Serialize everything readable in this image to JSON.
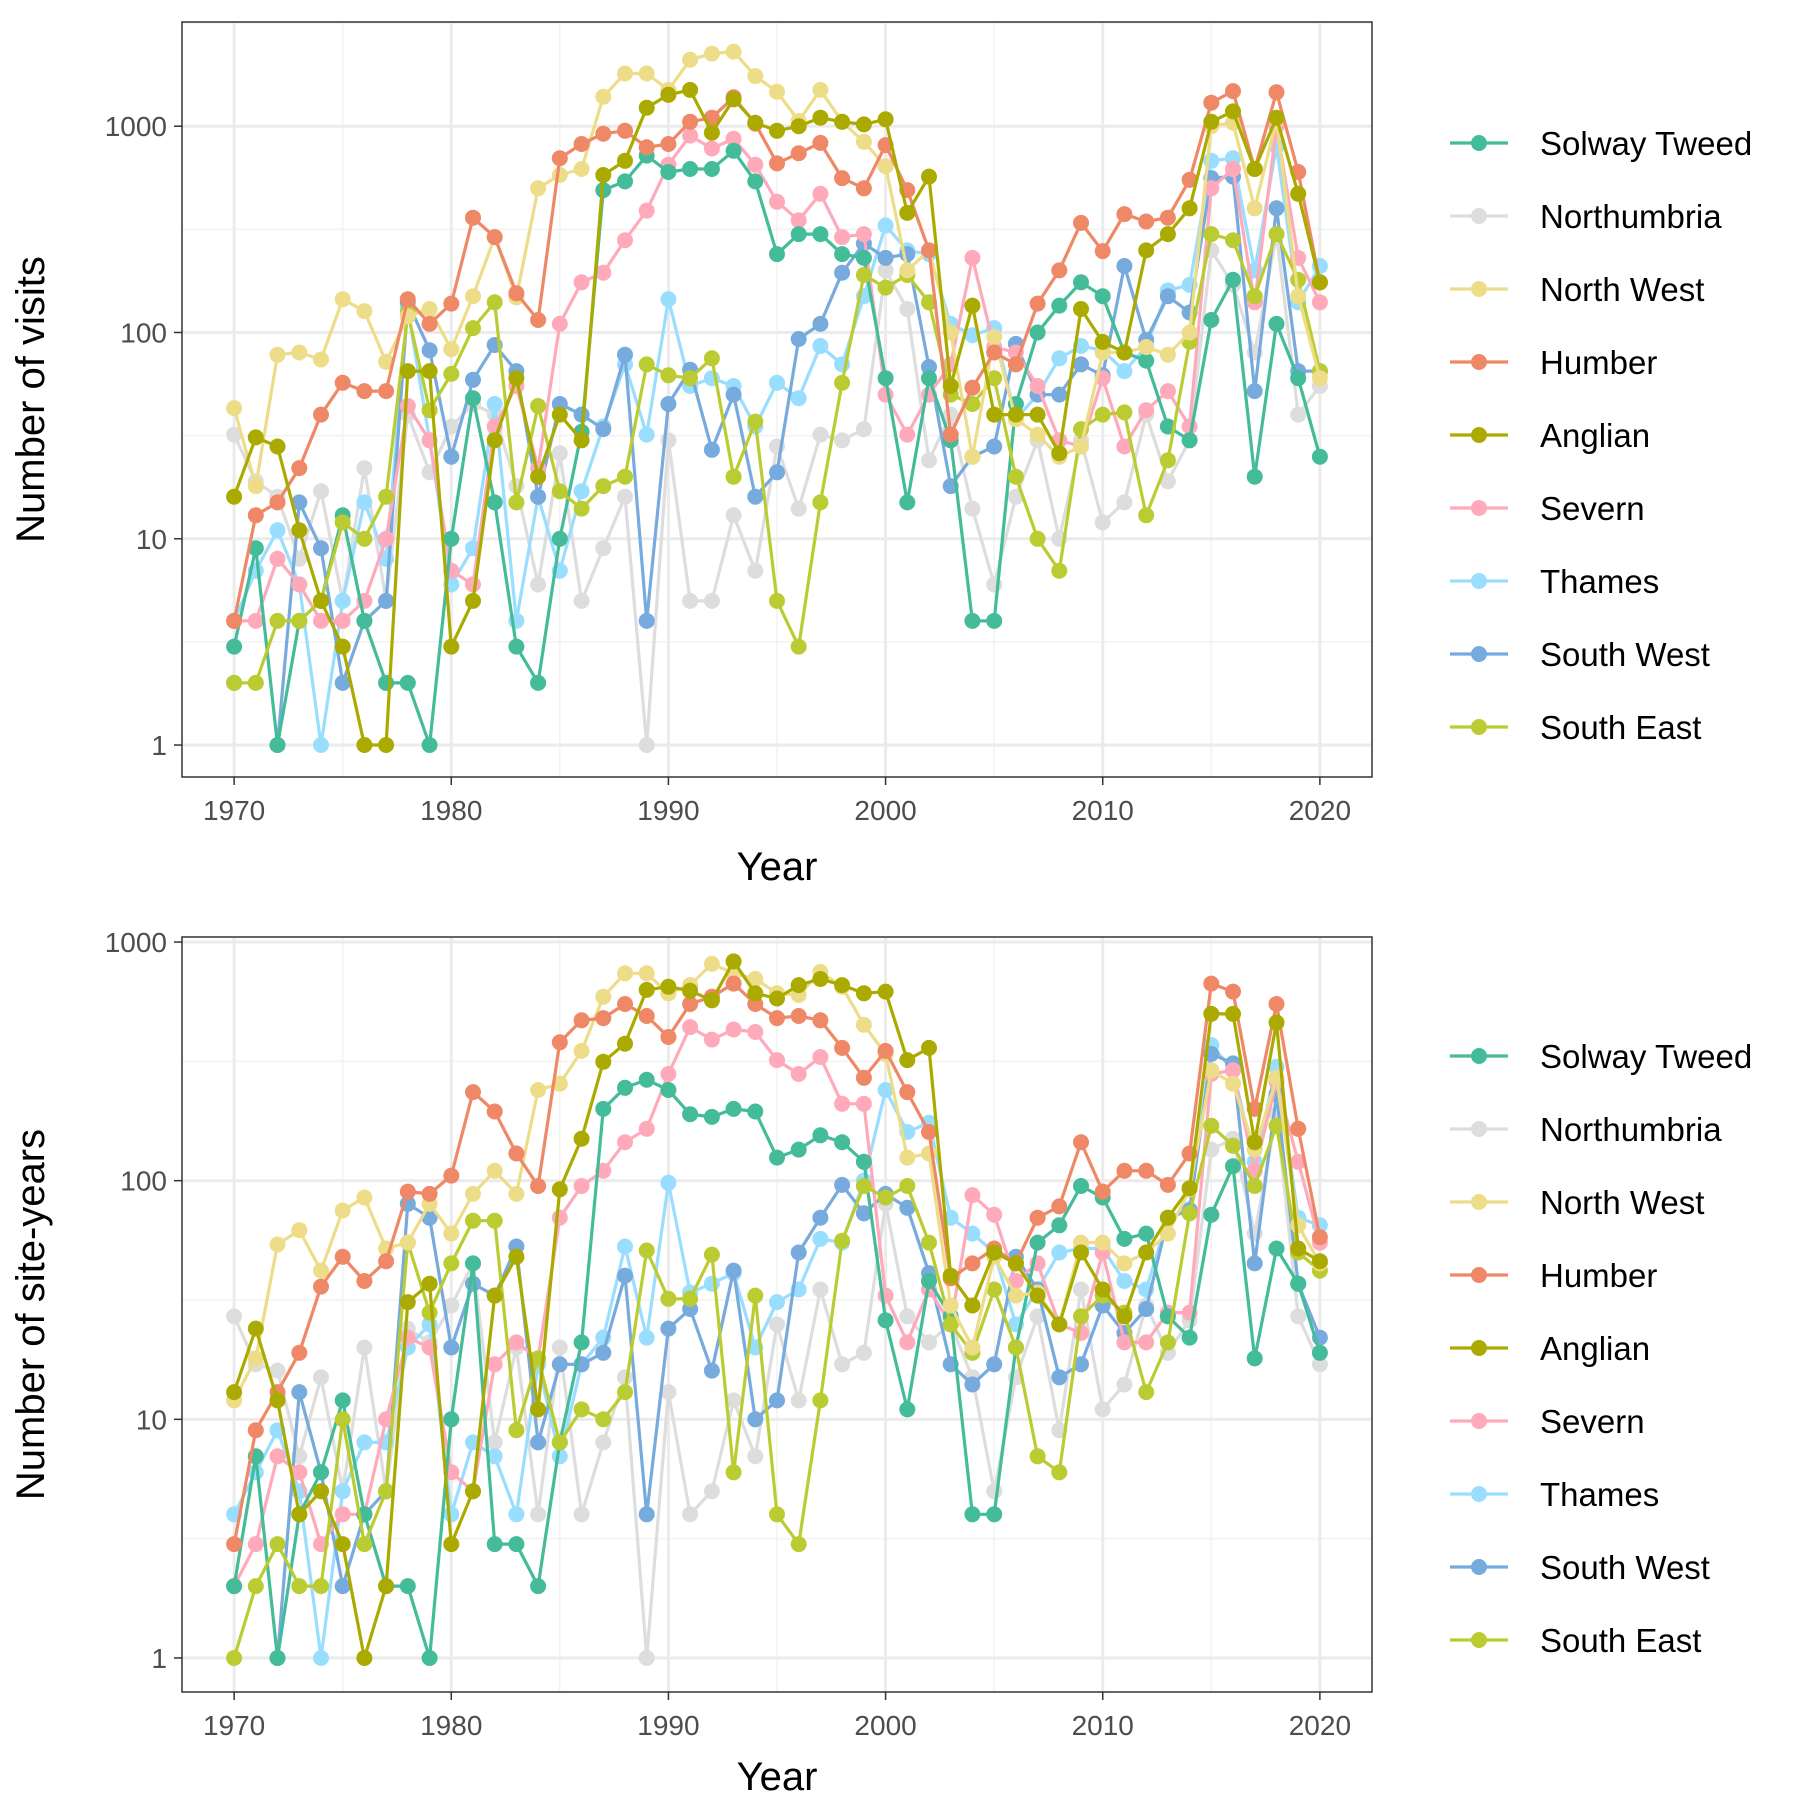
{
  "chart_data": [
    {
      "type": "line",
      "xlabel": "Year",
      "ylabel": "Number of visits",
      "y_scale": "log10",
      "xlim": [
        1967.6,
        2022.4
      ],
      "ylim": [
        0.7,
        3200
      ],
      "x_ticks": [
        1970,
        1980,
        1990,
        2000,
        2010,
        2020
      ],
      "y_ticks": [
        1,
        10,
        100,
        1000
      ],
      "y_tick_labels": [
        "1",
        "10",
        "100",
        "1000"
      ],
      "grid": true,
      "legend_position": "right",
      "x": [
        1970,
        1971,
        1972,
        1973,
        1974,
        1975,
        1976,
        1977,
        1978,
        1979,
        1980,
        1981,
        1982,
        1983,
        1984,
        1985,
        1986,
        1987,
        1988,
        1989,
        1990,
        1991,
        1992,
        1993,
        1994,
        1995,
        1996,
        1997,
        1998,
        1999,
        2000,
        2001,
        2002,
        2003,
        2004,
        2005,
        2006,
        2007,
        2008,
        2009,
        2010,
        2011,
        2012,
        2013,
        2014,
        2015,
        2016,
        2017,
        2018,
        2019,
        2020
      ],
      "series": [
        {
          "name": "Northumbria",
          "color": "#dddddd",
          "values": [
            32,
            19,
            16,
            8,
            17,
            5,
            22,
            5,
            40,
            21,
            35,
            45,
            40,
            18,
            6,
            26,
            5,
            9,
            16,
            1,
            30,
            5,
            5,
            13,
            7,
            28,
            14,
            32,
            30,
            34,
            200,
            130,
            24,
            40,
            14,
            6,
            16,
            30,
            10,
            30,
            12,
            15,
            40,
            19,
            30,
            250,
            170,
            80,
            300,
            40,
            55
          ]
        },
        {
          "name": "Thames",
          "color": "#99ddff",
          "values": [
            4,
            7,
            11,
            6,
            1,
            5,
            15,
            8,
            130,
            30,
            6,
            9,
            45,
            4,
            16,
            7,
            17,
            35,
            70,
            32,
            145,
            55,
            60,
            55,
            35,
            57,
            48,
            86,
            70,
            150,
            330,
            250,
            240,
            110,
            97,
            105,
            38,
            50,
            75,
            86,
            82,
            65,
            85,
            160,
            170,
            680,
            700,
            200,
            800,
            140,
            210
          ]
        },
        {
          "name": "South West",
          "color": "#77aadd",
          "values": [
            2,
            null,
            1,
            15,
            9,
            2,
            4,
            5,
            140,
            82,
            25,
            59,
            87,
            65,
            16,
            45,
            40,
            34,
            78,
            4,
            45,
            66,
            27,
            50,
            16,
            21,
            93,
            110,
            195,
            270,
            230,
            240,
            68,
            18,
            25,
            28,
            88,
            50,
            50,
            70,
            62,
            210,
            92,
            150,
            125,
            560,
            570,
            52,
            400,
            65,
            65
          ]
        },
        {
          "name": "Severn",
          "color": "#ffaabb",
          "values": [
            4,
            4,
            8,
            6,
            4,
            4,
            5,
            10,
            44,
            30,
            7,
            6,
            35,
            55,
            22,
            110,
            175,
            195,
            280,
            390,
            650,
            900,
            780,
            870,
            650,
            430,
            350,
            470,
            290,
            300,
            50,
            32,
            50,
            70,
            230,
            85,
            80,
            55,
            30,
            28,
            60,
            28,
            42,
            52,
            35,
            500,
            620,
            140,
            1000,
            230,
            140
          ]
        },
        {
          "name": "Solway Tweed",
          "color": "#44bb99",
          "values": [
            3,
            9,
            1,
            4,
            5,
            13,
            4,
            2,
            2,
            1,
            10,
            48,
            15,
            3,
            2,
            10,
            33,
            490,
            540,
            720,
            600,
            620,
            620,
            760,
            540,
            240,
            300,
            300,
            240,
            230,
            60,
            15,
            60,
            30,
            4,
            4,
            45,
            100,
            135,
            175,
            150,
            80,
            73,
            35,
            30,
            115,
            180,
            20,
            110,
            60,
            25
          ]
        },
        {
          "name": "South East",
          "color": "#bbcc33",
          "values": [
            2,
            2,
            4,
            4,
            5,
            12,
            10,
            16,
            125,
            42,
            63,
            105,
            140,
            15,
            44,
            17,
            14,
            18,
            20,
            70,
            62,
            60,
            75,
            20,
            37,
            5,
            3,
            15,
            57,
            190,
            165,
            190,
            140,
            50,
            45,
            60,
            20,
            10,
            7,
            34,
            40,
            41,
            13,
            24,
            90,
            300,
            280,
            150,
            300,
            180,
            65
          ]
        },
        {
          "name": "North West",
          "color": "#eedd88",
          "values": [
            43,
            18,
            78,
            80,
            74,
            145,
            127,
            72,
            120,
            130,
            83,
            150,
            290,
            148,
            500,
            580,
            620,
            1390,
            1800,
            1800,
            1500,
            2100,
            2250,
            2300,
            1750,
            1470,
            1060,
            1500,
            1050,
            840,
            640,
            200,
            250,
            100,
            25,
            95,
            38,
            32,
            25,
            28,
            80,
            80,
            85,
            78,
            100,
            1000,
            1040,
            400,
            1070,
            150,
            60
          ]
        },
        {
          "name": "Humber",
          "color": "#ee8866",
          "values": [
            4,
            13,
            15,
            22,
            40,
            57,
            52,
            52,
            145,
            110,
            138,
            360,
            290,
            155,
            115,
            700,
            820,
            920,
            950,
            790,
            820,
            1050,
            1100,
            1380,
            1030,
            660,
            740,
            830,
            560,
            500,
            810,
            490,
            250,
            32,
            54,
            80,
            70,
            138,
            200,
            340,
            248,
            375,
            345,
            360,
            550,
            1300,
            1480,
            620,
            1460,
            600,
            175
          ]
        },
        {
          "name": "Anglian",
          "color": "#aaaa00",
          "values": [
            16,
            31,
            28,
            11,
            5,
            3,
            1,
            1,
            65,
            65,
            3,
            5,
            30,
            60,
            20,
            40,
            30,
            580,
            680,
            1230,
            1420,
            1500,
            930,
            1350,
            1040,
            950,
            1000,
            1100,
            1050,
            1020,
            1080,
            380,
            570,
            55,
            135,
            40,
            40,
            40,
            26,
            130,
            90,
            80,
            250,
            300,
            400,
            1050,
            1180,
            620,
            1100,
            470,
            175
          ]
        }
      ]
    },
    {
      "type": "line",
      "xlabel": "Year",
      "ylabel": "Number of site-years",
      "y_scale": "log10",
      "xlim": [
        1967.6,
        2022.4
      ],
      "ylim": [
        0.72,
        1050
      ],
      "x_ticks": [
        1970,
        1980,
        1990,
        2000,
        2010,
        2020
      ],
      "y_ticks": [
        1,
        10,
        100,
        1000
      ],
      "y_tick_labels": [
        "1",
        "10",
        "100",
        "1000"
      ],
      "grid": true,
      "legend_position": "right",
      "x": [
        1970,
        1971,
        1972,
        1973,
        1974,
        1975,
        1976,
        1977,
        1978,
        1979,
        1980,
        1981,
        1982,
        1983,
        1984,
        1985,
        1986,
        1987,
        1988,
        1989,
        1990,
        1991,
        1992,
        1993,
        1994,
        1995,
        1996,
        1997,
        1998,
        1999,
        2000,
        2001,
        2002,
        2003,
        2004,
        2005,
        2006,
        2007,
        2008,
        2009,
        2010,
        2011,
        2012,
        2013,
        2014,
        2015,
        2016,
        2017,
        2018,
        2019,
        2020
      ],
      "series": [
        {
          "name": "Northumbria",
          "color": "#dddddd",
          "values": [
            27,
            17,
            16,
            7,
            15,
            5,
            20,
            5,
            24,
            21,
            30,
            45,
            8,
            20,
            4,
            20,
            4,
            8,
            15,
            1,
            13,
            4,
            5,
            12,
            7,
            25,
            12,
            35,
            17,
            19,
            80,
            27,
            21,
            25,
            15,
            5,
            15,
            27,
            9,
            35,
            11,
            14,
            30,
            19,
            26,
            135,
            150,
            60,
            190,
            27,
            17
          ]
        },
        {
          "name": "Thames",
          "color": "#99ddff",
          "values": [
            4,
            6,
            9,
            5,
            1,
            5,
            8,
            8,
            20,
            25,
            4,
            8,
            7,
            4,
            17,
            7,
            17,
            22,
            53,
            22,
            98,
            34,
            37,
            41,
            20,
            31,
            35,
            57,
            55,
            100,
            240,
            160,
            175,
            70,
            60,
            50,
            25,
            35,
            50,
            52,
            52,
            38,
            35,
            70,
            76,
            370,
            290,
            120,
            300,
            70,
            65
          ]
        },
        {
          "name": "South West",
          "color": "#77aadd",
          "values": [
            2,
            null,
            1,
            13,
            6,
            2,
            4,
            5,
            80,
            70,
            20,
            37,
            33,
            53,
            8,
            17,
            17,
            19,
            40,
            4,
            24,
            29,
            16,
            42,
            10,
            12,
            50,
            70,
            96,
            73,
            88,
            77,
            41,
            17,
            14,
            17,
            48,
            35,
            15,
            17,
            30,
            23,
            29,
            70,
            75,
            340,
            310,
            45,
            230,
            37,
            22
          ]
        },
        {
          "name": "Severn",
          "color": "#ffaabb",
          "values": [
            2,
            3,
            7,
            6,
            3,
            4,
            4,
            10,
            22,
            20,
            6,
            5,
            17,
            21,
            18,
            70,
            95,
            110,
            145,
            165,
            280,
            440,
            390,
            430,
            420,
            320,
            280,
            330,
            210,
            210,
            33,
            21,
            35,
            25,
            87,
            72,
            38,
            45,
            25,
            23,
            50,
            21,
            21,
            28,
            28,
            280,
            290,
            110,
            260,
            120,
            55
          ]
        },
        {
          "name": "Solway Tweed",
          "color": "#44bb99",
          "values": [
            2,
            7,
            1,
            4,
            6,
            12,
            4,
            2,
            2,
            1,
            10,
            45,
            3,
            3,
            2,
            8,
            21,
            200,
            245,
            265,
            240,
            190,
            185,
            200,
            195,
            125,
            135,
            155,
            145,
            120,
            26,
            11,
            38,
            27,
            4,
            4,
            20,
            55,
            65,
            95,
            85,
            57,
            60,
            27,
            22,
            72,
            115,
            18,
            52,
            37,
            19
          ]
        },
        {
          "name": "South East",
          "color": "#bbcc33",
          "values": [
            1,
            2,
            3,
            2,
            2,
            10,
            3,
            5,
            55,
            28,
            45,
            68,
            68,
            9,
            18,
            8,
            11,
            10,
            13,
            51,
            32,
            32,
            49,
            6,
            33,
            4,
            3,
            12,
            56,
            95,
            85,
            95,
            55,
            25,
            19,
            35,
            20,
            7,
            6,
            27,
            33,
            28,
            13,
            21,
            73,
            170,
            140,
            95,
            170,
            50,
            42
          ]
        },
        {
          "name": "North West",
          "color": "#eedd88",
          "values": [
            12,
            18,
            54,
            62,
            42,
            75,
            85,
            52,
            55,
            80,
            60,
            88,
            110,
            88,
            240,
            255,
            350,
            590,
            740,
            740,
            610,
            660,
            810,
            740,
            700,
            610,
            600,
            750,
            650,
            450,
            340,
            125,
            130,
            30,
            20,
            48,
            33,
            34,
            25,
            55,
            55,
            45,
            50,
            60,
            92,
            290,
            255,
            135,
            270,
            65,
            45
          ]
        },
        {
          "name": "Humber",
          "color": "#ee8866",
          "values": [
            3,
            9,
            13,
            19,
            36,
            48,
            38,
            46,
            90,
            88,
            105,
            235,
            195,
            130,
            95,
            380,
            470,
            480,
            550,
            490,
            400,
            550,
            590,
            670,
            550,
            480,
            490,
            470,
            360,
            270,
            350,
            235,
            160,
            39,
            45,
            52,
            45,
            70,
            78,
            145,
            90,
            110,
            110,
            96,
            130,
            670,
            620,
            200,
            550,
            165,
            58
          ]
        },
        {
          "name": "Anglian",
          "color": "#aaaa00",
          "values": [
            13,
            24,
            12,
            4,
            5,
            3,
            1,
            2,
            31,
            37,
            3,
            5,
            33,
            48,
            11,
            92,
            150,
            315,
            375,
            630,
            650,
            625,
            570,
            830,
            610,
            580,
            660,
            700,
            660,
            610,
            620,
            320,
            360,
            40,
            30,
            50,
            45,
            33,
            25,
            50,
            35,
            27,
            50,
            70,
            93,
            500,
            500,
            145,
            460,
            52,
            46
          ]
        }
      ]
    }
  ]
}
